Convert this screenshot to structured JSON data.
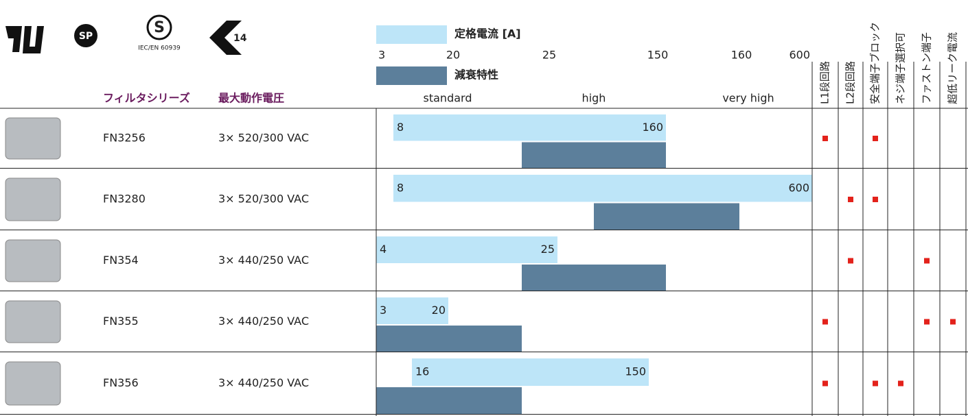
{
  "header": {
    "certification_label": "IEC/EN 60939",
    "enec_mark": "14",
    "series_label": "フィルタシリーズ",
    "voltage_label": "最大動作電圧",
    "current_legend": "定格電流 [A]",
    "attenuation_legend": "減衰特性",
    "current_scale": [
      3,
      20,
      25,
      150,
      160,
      600
    ],
    "attenuation_levels": [
      "standard",
      "high",
      "very high"
    ],
    "features": [
      "L1段回路",
      "L2段回路",
      "安全端子ブロック",
      "ネジ端子選択可",
      "ファストン端子",
      "超低リーク電流"
    ]
  },
  "rows": [
    {
      "series": "FN3256",
      "voltage": "3× 520/300 VAC",
      "current_min": 8,
      "current_max": 160,
      "features": [
        true,
        false,
        true,
        false,
        false,
        false
      ]
    },
    {
      "series": "FN3280",
      "voltage": "3× 520/300 VAC",
      "current_min": 8,
      "current_max": 600,
      "features": [
        false,
        true,
        true,
        false,
        false,
        false
      ]
    },
    {
      "series": "FN354",
      "voltage": "3× 440/250 VAC",
      "current_min": 4,
      "current_max": 25,
      "features": [
        false,
        true,
        false,
        false,
        true,
        false
      ]
    },
    {
      "series": "FN355",
      "voltage": "3× 440/250 VAC",
      "current_min": 3,
      "current_max": 20,
      "features": [
        true,
        false,
        false,
        false,
        true,
        true
      ]
    },
    {
      "series": "FN356",
      "voltage": "3× 440/250 VAC",
      "current_min": 16,
      "current_max": 150,
      "features": [
        true,
        false,
        true,
        true,
        false,
        false
      ]
    }
  ]
}
